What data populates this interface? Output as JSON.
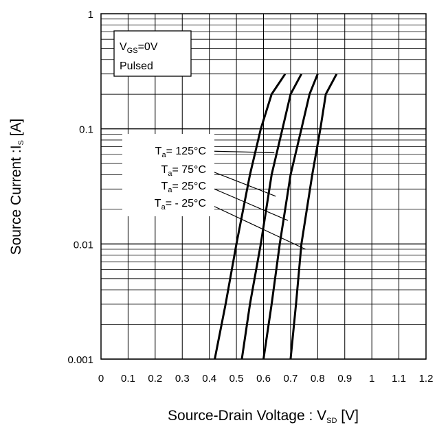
{
  "chart_data": {
    "type": "line",
    "title": "",
    "xlabel": {
      "main": "Source-Drain Voltage : V",
      "sub": "SD",
      "unit": " [V]"
    },
    "ylabel": {
      "main": "Source Current :I",
      "sub": "S",
      "unit": " [A]"
    },
    "xlim": [
      0,
      1.2
    ],
    "ylim": [
      0.001,
      1
    ],
    "yscale": "log",
    "grid": true,
    "x_tick_labels": [
      "0",
      "0.1",
      "0.2",
      "0.3",
      "0.4",
      "0.5",
      "0.6",
      "0.7",
      "0.8",
      "0.9",
      "1",
      "1.1",
      "1.2"
    ],
    "y_tick_labels": [
      "0.001",
      "0.01",
      "0.1",
      "1"
    ],
    "conditions": {
      "line1_main": "V",
      "line1_sub": "GS",
      "line1_rest": "=0V",
      "line2": "Pulsed"
    },
    "series": [
      {
        "name": "T_a = 125°C",
        "label": {
          "main": "T",
          "sub": "a",
          "rest": "= 125°C"
        },
        "points": [
          [
            0.42,
            0.001
          ],
          [
            0.46,
            0.003
          ],
          [
            0.5,
            0.01
          ],
          [
            0.55,
            0.04
          ],
          [
            0.59,
            0.1
          ],
          [
            0.63,
            0.2
          ],
          [
            0.68,
            0.3
          ]
        ]
      },
      {
        "name": "T_a = 75°C",
        "label": {
          "main": "T",
          "sub": "a",
          "rest": "= 75°C"
        },
        "points": [
          [
            0.52,
            0.001
          ],
          [
            0.55,
            0.003
          ],
          [
            0.59,
            0.01
          ],
          [
            0.63,
            0.04
          ],
          [
            0.67,
            0.1
          ],
          [
            0.7,
            0.2
          ],
          [
            0.74,
            0.3
          ]
        ]
      },
      {
        "name": "T_a = 25°C",
        "label": {
          "main": "T",
          "sub": "a",
          "rest": "= 25°C"
        },
        "points": [
          [
            0.6,
            0.001
          ],
          [
            0.63,
            0.003
          ],
          [
            0.66,
            0.01
          ],
          [
            0.7,
            0.04
          ],
          [
            0.74,
            0.1
          ],
          [
            0.77,
            0.2
          ],
          [
            0.8,
            0.3
          ]
        ]
      },
      {
        "name": "T_a = -25°C",
        "label": {
          "main": "T",
          "sub": "a",
          "rest": "= - 25°C"
        },
        "points": [
          [
            0.7,
            0.001
          ],
          [
            0.72,
            0.003
          ],
          [
            0.74,
            0.01
          ],
          [
            0.78,
            0.04
          ],
          [
            0.81,
            0.1
          ],
          [
            0.83,
            0.2
          ],
          [
            0.87,
            0.3
          ]
        ]
      }
    ],
    "label_targets": [
      [
        0.64,
        0.062
      ],
      [
        0.645,
        0.026
      ],
      [
        0.69,
        0.016
      ],
      [
        0.755,
        0.009
      ]
    ]
  }
}
